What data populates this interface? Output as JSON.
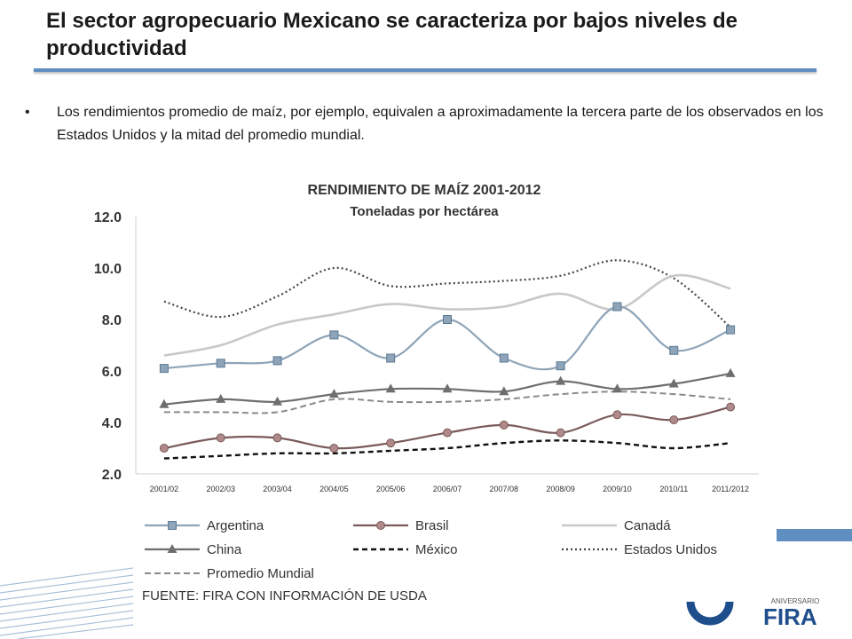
{
  "slide": {
    "title": "El sector agropecuario Mexicano se caracteriza por bajos niveles de productividad",
    "bullet_char": "•",
    "bullet_text": "Los rendimientos promedio de maíz, por ejemplo, equivalen a aproximadamente la tercera parte de los observados en los Estados Unidos y la mitad del promedio mundial.",
    "source": "FUENTE: FIRA CON INFORMACIÓN DE USDA",
    "logo_text": "FIRA",
    "logo_small_text": "ANIVERSARIO"
  },
  "colors": {
    "title_rule": "#5f8fc0",
    "argentina": "#8ea4b8",
    "brasil": "#7a5a5a",
    "canada": "#c8c8c8",
    "china": "#6e6e6e",
    "mexico": "#111111",
    "usa": "#444444",
    "mundial": "#8a8a8a",
    "logo_blue": "#1f4e8c"
  },
  "chart_data": {
    "type": "line",
    "title": "RENDIMIENTO DE MAÍZ 2001-2012",
    "subtitle": "Toneladas por hectárea",
    "xlabel": "",
    "ylabel": "",
    "ylim": [
      2.0,
      12.0
    ],
    "yticks": [
      "12.0",
      "10.0",
      "8.0",
      "6.0",
      "4.0",
      "2.0"
    ],
    "ytick_values": [
      12,
      10,
      8,
      6,
      4,
      2
    ],
    "categories": [
      "2001/02",
      "2002/03",
      "2003/04",
      "2004/05",
      "2005/06",
      "2006/07",
      "2007/08",
      "2008/09",
      "2009/10",
      "2010/11",
      "2011/2012"
    ],
    "legend_position": "bottom",
    "series": [
      {
        "name": "Argentina",
        "key": "argentina",
        "style": "solid",
        "marker": "square",
        "values": [
          6.1,
          6.3,
          6.4,
          7.4,
          6.5,
          8.0,
          6.5,
          6.2,
          8.5,
          6.8,
          7.6
        ]
      },
      {
        "name": "Brasil",
        "key": "brasil",
        "style": "solid",
        "marker": "circle",
        "values": [
          3.0,
          3.4,
          3.4,
          3.0,
          3.2,
          3.6,
          3.9,
          3.6,
          4.3,
          4.1,
          4.6
        ]
      },
      {
        "name": "Canadá",
        "key": "canada",
        "style": "solid",
        "marker": "none",
        "values": [
          6.6,
          7.0,
          7.8,
          8.2,
          8.6,
          8.4,
          8.5,
          9.0,
          8.4,
          9.7,
          9.2
        ]
      },
      {
        "name": "China",
        "key": "china",
        "style": "solid",
        "marker": "triangle",
        "values": [
          4.7,
          4.9,
          4.8,
          5.1,
          5.3,
          5.3,
          5.2,
          5.6,
          5.3,
          5.5,
          5.9
        ]
      },
      {
        "name": "México",
        "key": "mexico",
        "style": "dashed",
        "marker": "none",
        "values": [
          2.6,
          2.7,
          2.8,
          2.8,
          2.9,
          3.0,
          3.2,
          3.3,
          3.2,
          3.0,
          3.2
        ]
      },
      {
        "name": "Estados Unidos",
        "key": "usa",
        "style": "dotted",
        "marker": "none",
        "values": [
          8.7,
          8.1,
          8.9,
          10.0,
          9.3,
          9.4,
          9.5,
          9.7,
          10.3,
          9.6,
          7.7
        ]
      },
      {
        "name": "Promedio Mundial",
        "key": "mundial",
        "style": "dashed",
        "marker": "none",
        "values": [
          4.4,
          4.4,
          4.4,
          4.9,
          4.8,
          4.8,
          4.9,
          5.1,
          5.2,
          5.1,
          4.9
        ]
      }
    ]
  }
}
